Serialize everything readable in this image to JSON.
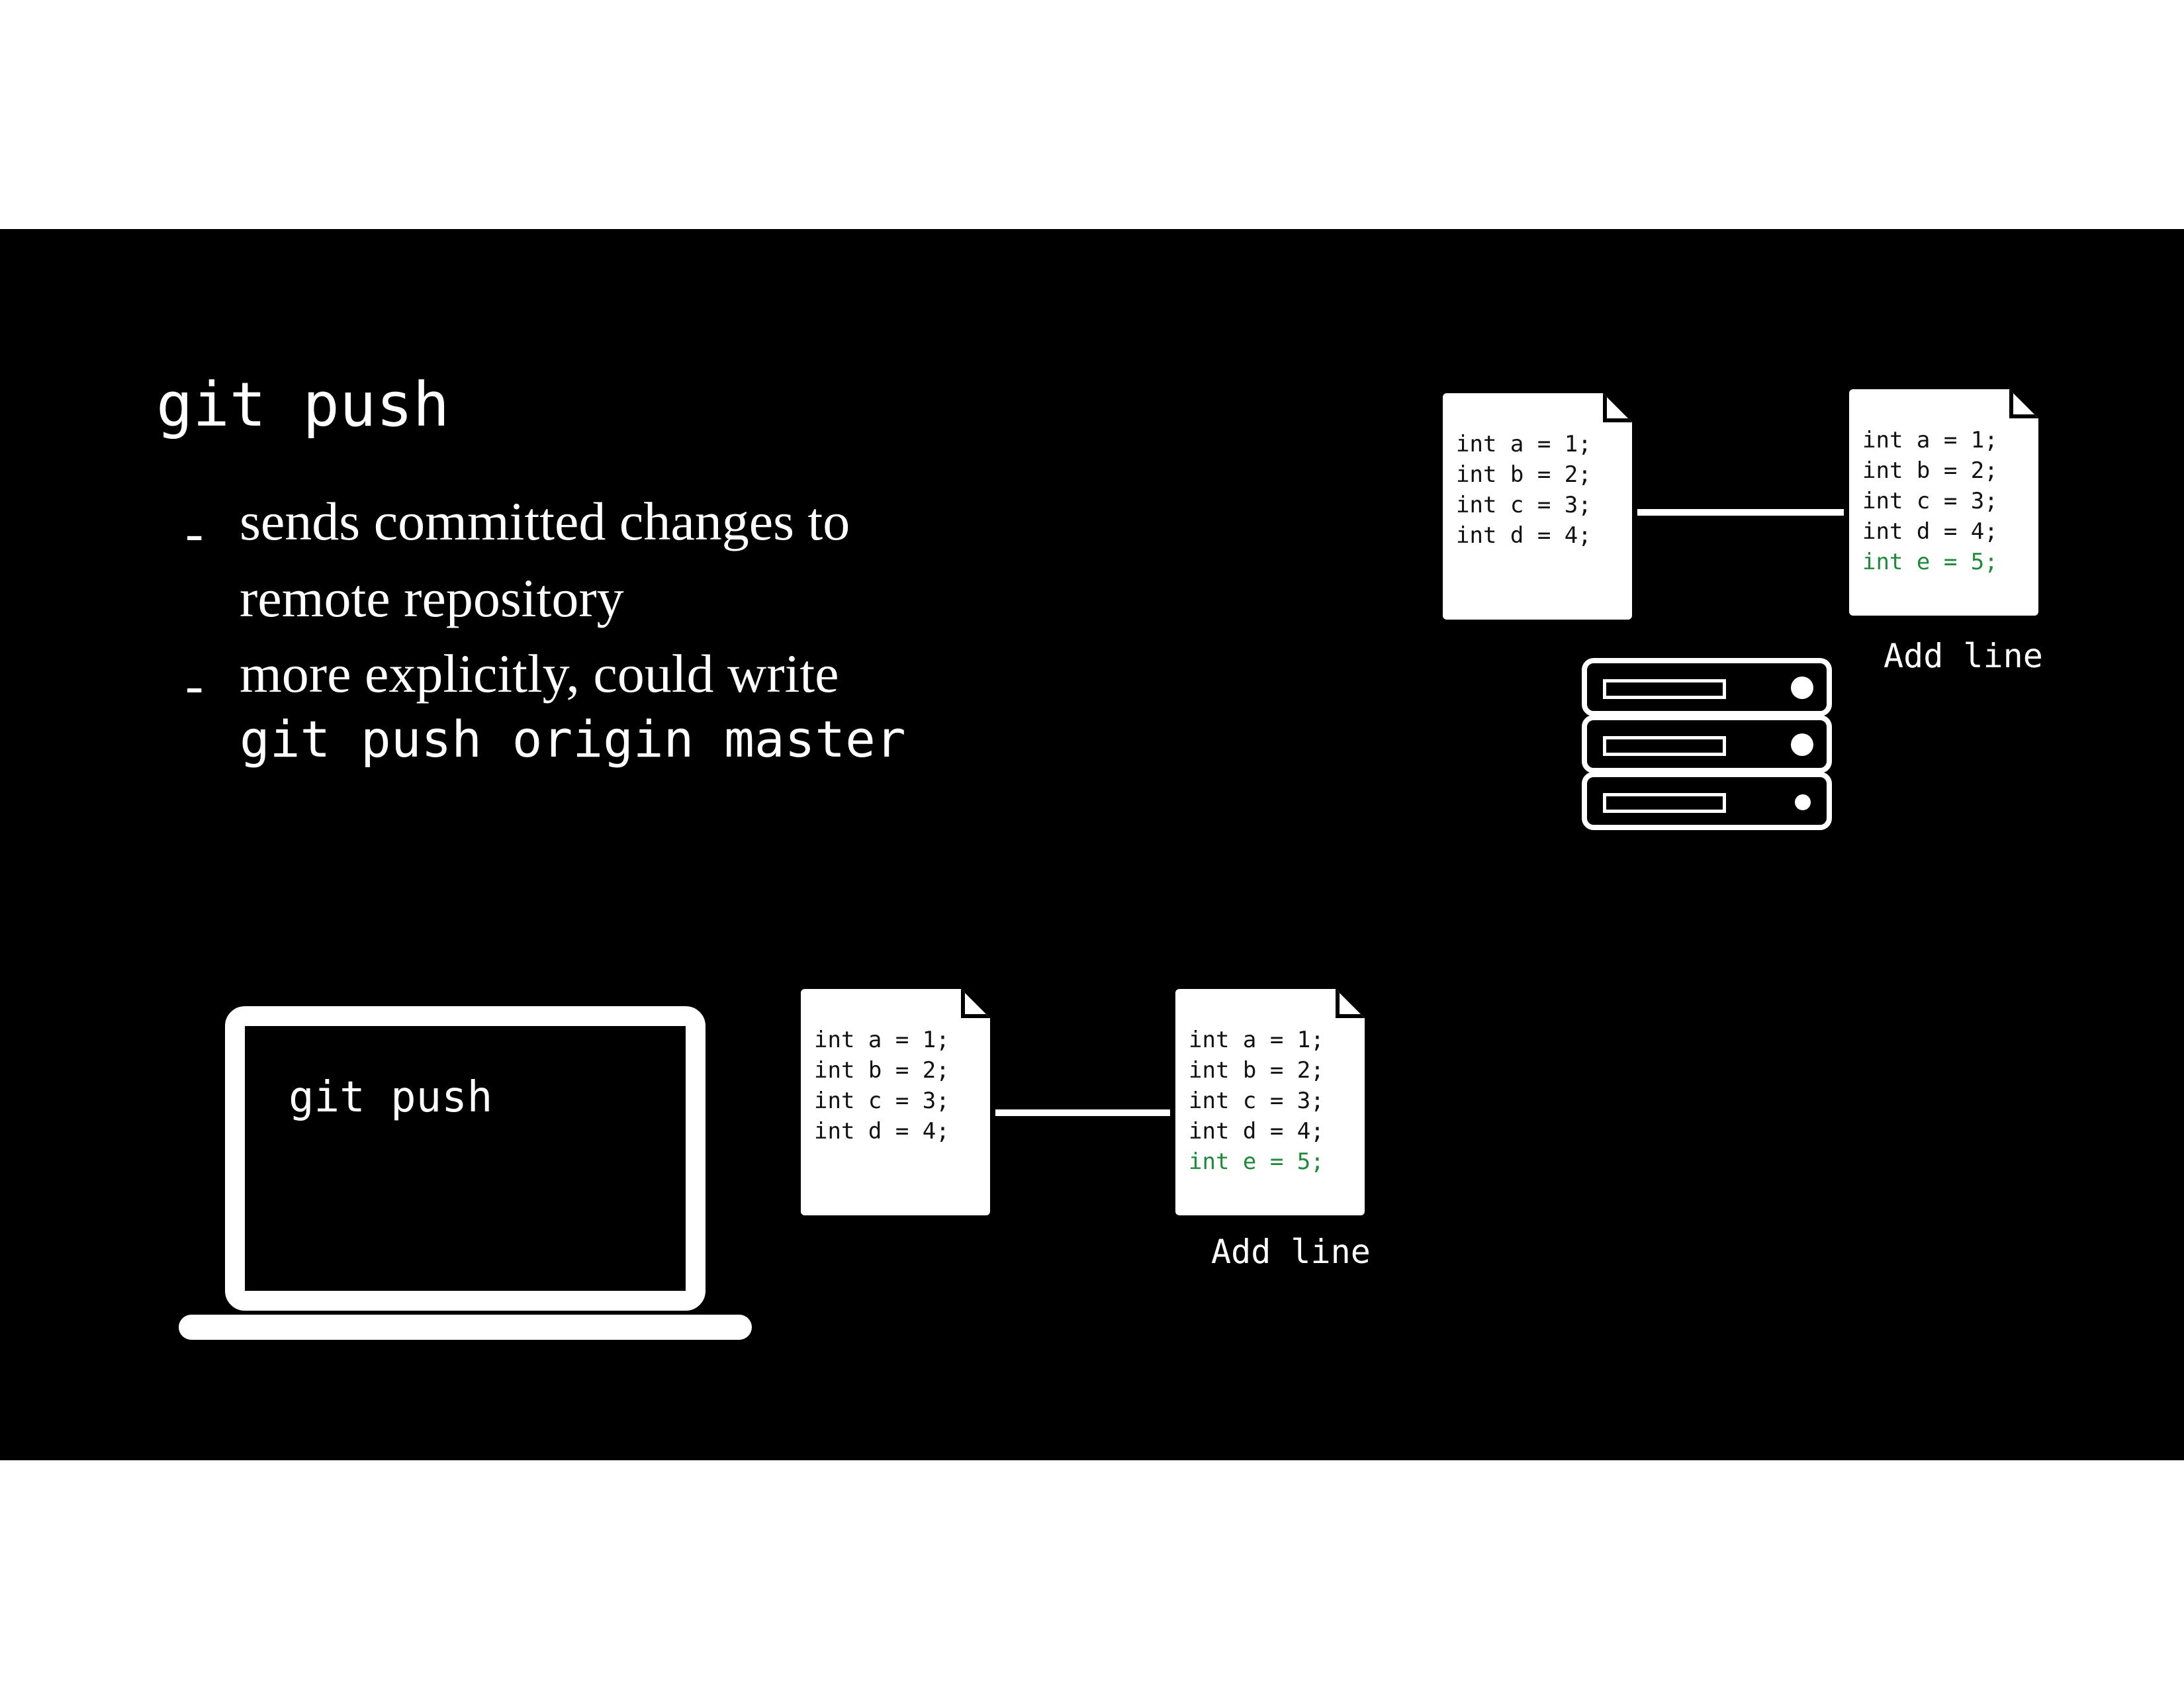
{
  "slide": {
    "title": "git push",
    "bullets": [
      {
        "dash": "-",
        "lines": [
          "sends committed changes to",
          "remote repository"
        ]
      },
      {
        "dash": "-",
        "lines": [
          "more explicitly, could write"
        ],
        "code": "git push origin master"
      }
    ]
  },
  "diagram": {
    "remote": {
      "file_before": [
        "int a = 1;",
        "int b = 2;",
        "int c = 3;",
        "int d = 4;"
      ],
      "file_after": [
        "int a = 1;",
        "int b = 2;",
        "int c = 3;",
        "int d = 4;"
      ],
      "file_after_added": "int e = 5;",
      "commit_label": "Add line",
      "server_icon": "server-stack-icon"
    },
    "local": {
      "laptop_icon": "laptop-icon",
      "terminal_command": "git push",
      "file_before": [
        "int a = 1;",
        "int b = 2;",
        "int c = 3;",
        "int d = 4;"
      ],
      "file_after": [
        "int a = 1;",
        "int b = 2;",
        "int c = 3;",
        "int d = 4;"
      ],
      "file_after_added": "int e = 5;",
      "commit_label": "Add line"
    },
    "colors": {
      "background": "#000000",
      "foreground": "#ffffff",
      "added_line": "#1f8a3a"
    }
  }
}
